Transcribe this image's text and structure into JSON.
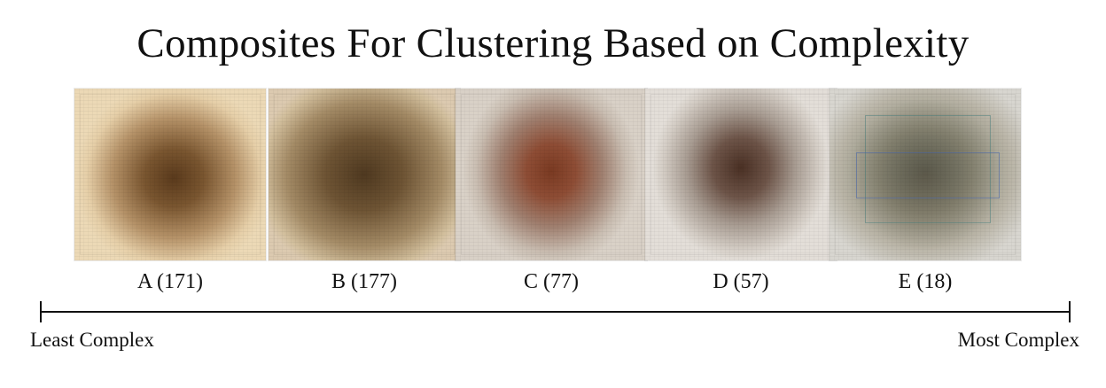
{
  "title": "Composites For Clustering Based on Complexity",
  "clusters": [
    {
      "label": "A (171)",
      "color": "#5a3a1c"
    },
    {
      "label": "B (177)",
      "color": "#4f3920"
    },
    {
      "label": "C (77)",
      "color": "#7a3a22"
    },
    {
      "label": "D (57)",
      "color": "#4a3024"
    },
    {
      "label": "E (18)",
      "color": "#5f7068"
    }
  ],
  "axis": {
    "left_label": "Least Complex",
    "right_label": "Most Complex"
  }
}
